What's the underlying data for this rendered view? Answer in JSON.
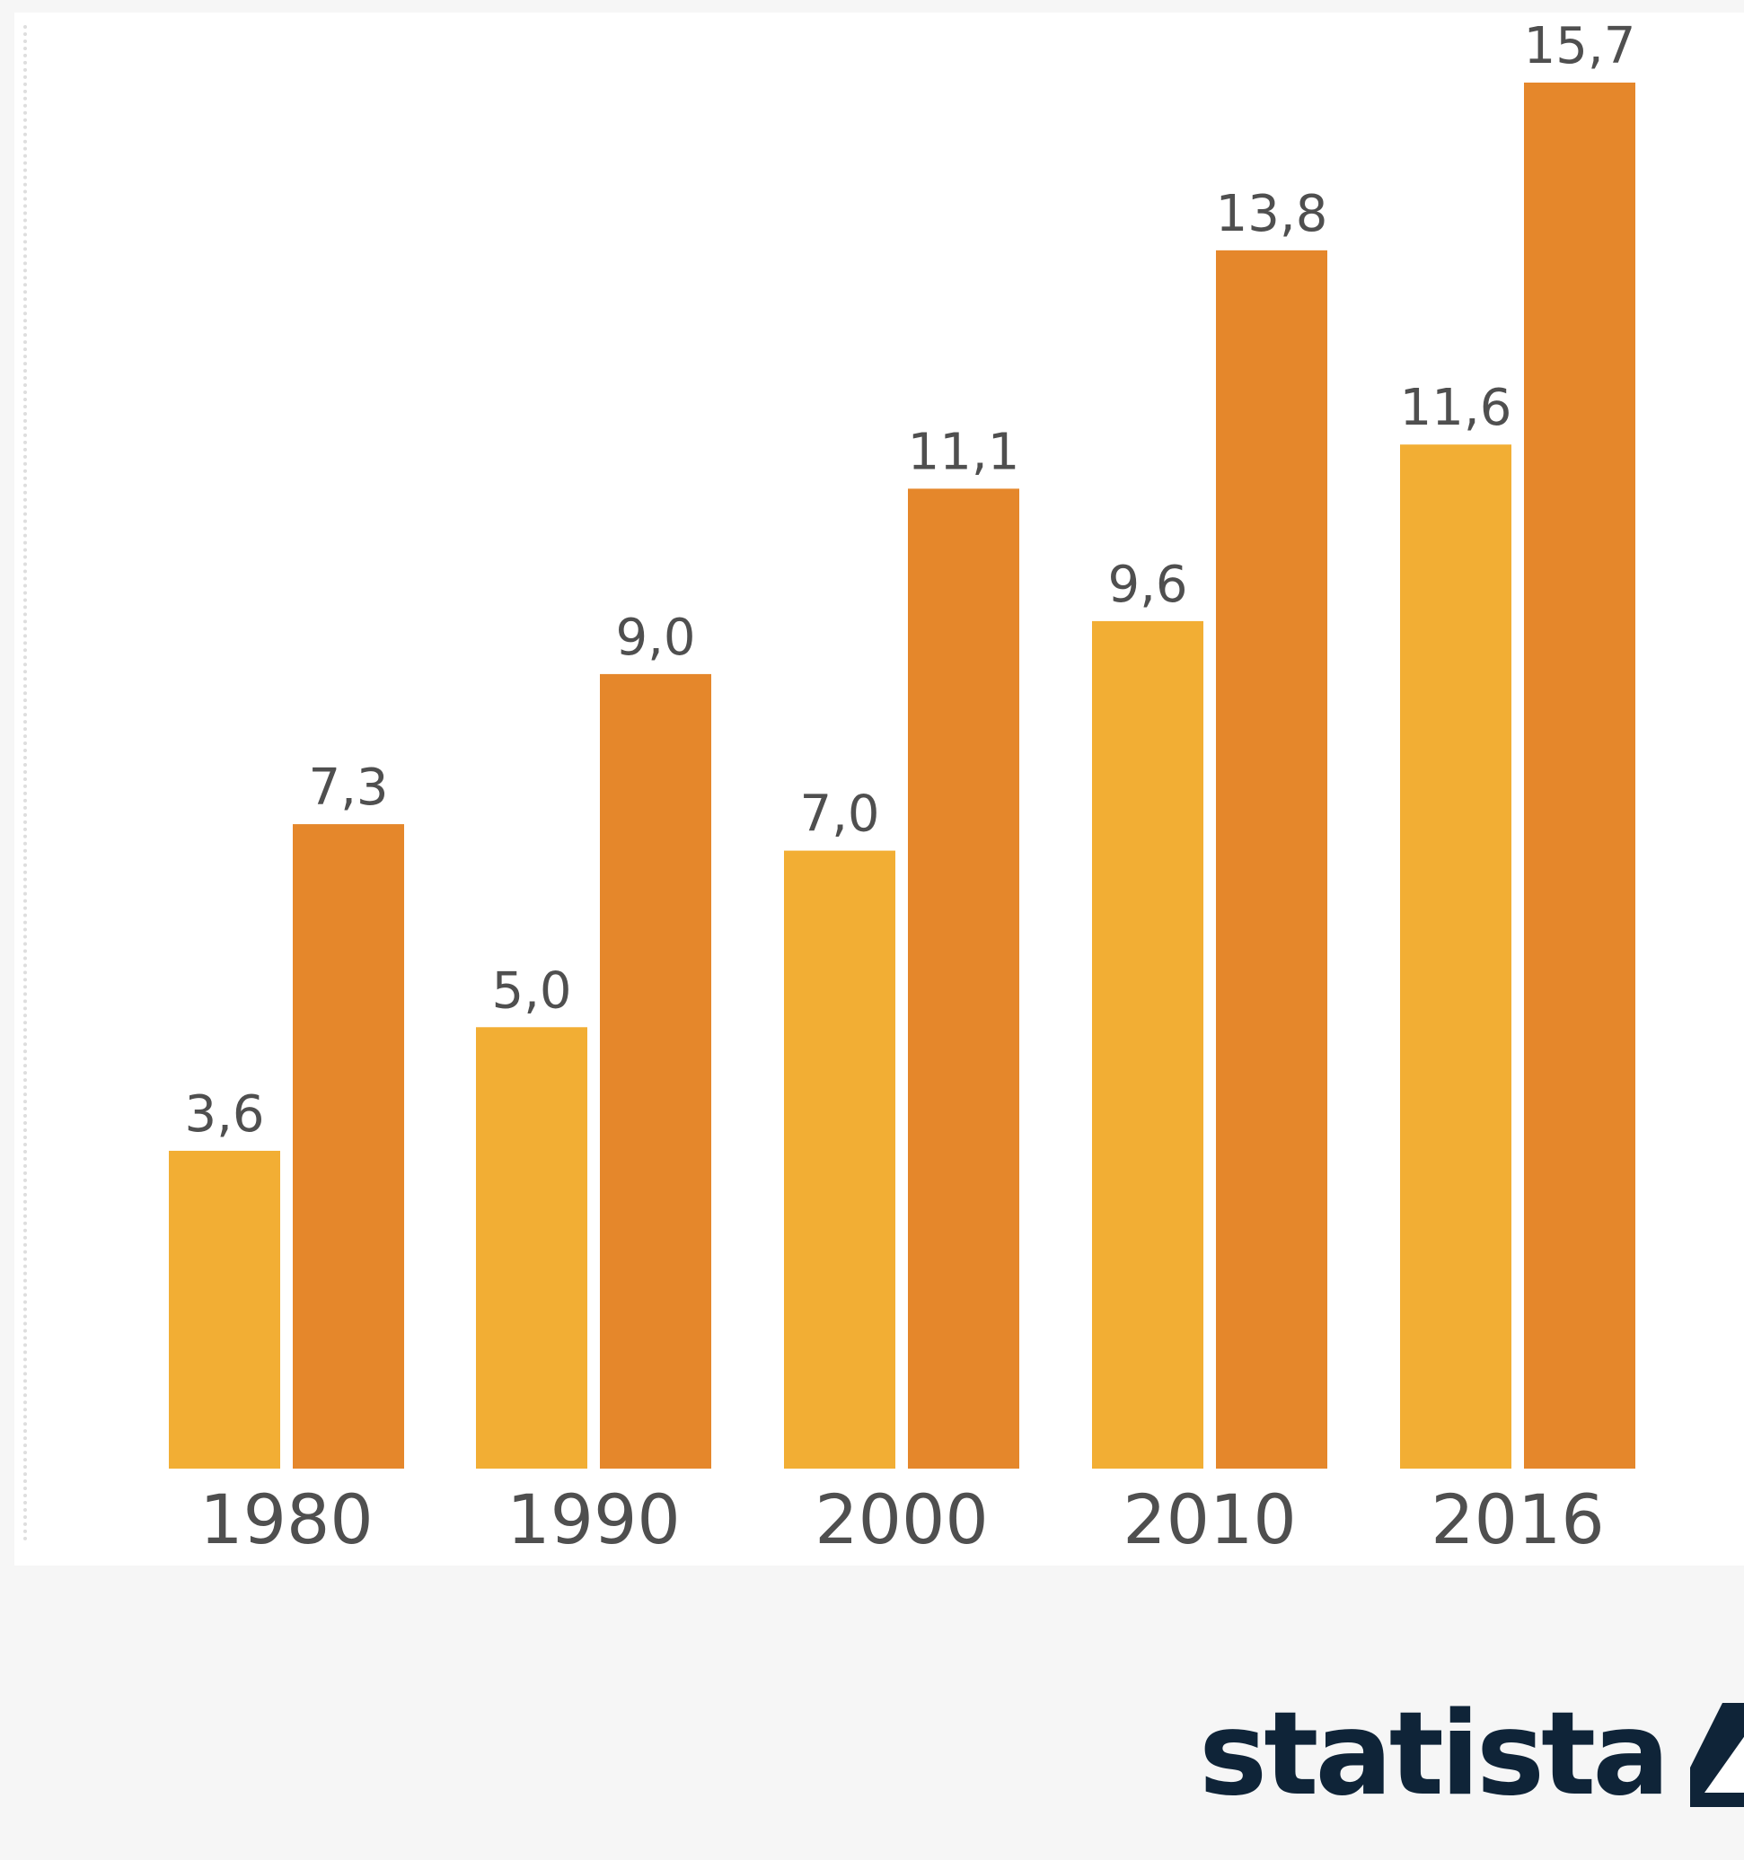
{
  "chart_data": {
    "type": "bar",
    "categories": [
      "1980",
      "1990",
      "2000",
      "2010",
      "2016"
    ],
    "series": [
      {
        "values": [
          3.6,
          5.0,
          7.0,
          9.6,
          11.6
        ],
        "labels": [
          "3,6",
          "5,0",
          "7,0",
          "9,6",
          "11,6"
        ],
        "color": "#f2ae34"
      },
      {
        "values": [
          7.3,
          9.0,
          11.1,
          13.8,
          15.7
        ],
        "labels": [
          "7,3",
          "9,0",
          "11,1",
          "13,8",
          "15,7"
        ],
        "color": "#e5872b"
      }
    ],
    "ylim": [
      0,
      15.7
    ],
    "grid": false,
    "legend": "none",
    "title": "",
    "xlabel": "",
    "ylabel": ""
  },
  "colors": {
    "background": "#f6f6f6",
    "panel": "#ffffff",
    "text": "#4f4f4f",
    "brand": "#0f2438"
  },
  "brand": {
    "name": "statista",
    "icon": "statista-logo-icon"
  }
}
